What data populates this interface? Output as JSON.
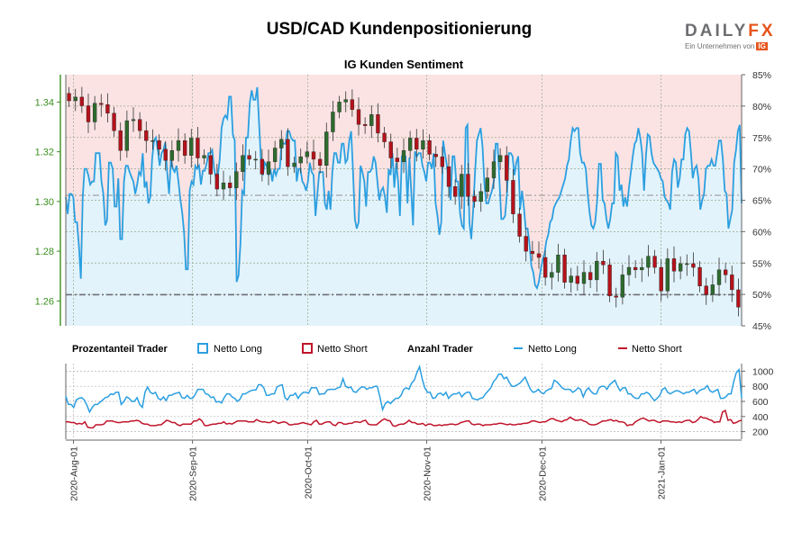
{
  "title": "USD/CAD Kundenpositionierung",
  "brand": {
    "name_a": "DAILY",
    "name_b": "FX",
    "tagline": "Ein Unternehmen von",
    "tag_mark": "IG"
  },
  "colors": {
    "long": "#2b9fe0",
    "short": "#c0142a",
    "candle_up": "#2e6b2e",
    "candle_down": "#b5121b",
    "long_fill": "#e3f3fb",
    "short_fill": "#fbe3e3",
    "left_axis": "#3b8f1f"
  },
  "legend": {
    "group1": "Prozentanteil Trader",
    "long1": "Netto Long",
    "short1": "Netto Short",
    "group2": "Anzahl Trader",
    "long2": "Netto Long",
    "short2": "Netto Short"
  },
  "chart_data": [
    {
      "type": "candlestick",
      "title": "IG Kunden Sentiment",
      "x_ticks": [
        "2020-Aug-01",
        "2020-Sep-01",
        "2020-Oct-01",
        "2020-Nov-01",
        "2020-Dec-01",
        "2021-Jan-01"
      ],
      "x_range": [
        "2020-07-30",
        "2021-01-22"
      ],
      "y_left_ticks": [
        "1.26",
        "1.28",
        "1.30",
        "1.32",
        "1.34"
      ],
      "ylim_left": [
        1.25,
        1.351
      ],
      "y_right_ticks": [
        "45%",
        "50%",
        "55%",
        "60%",
        "65%",
        "70%",
        "75%",
        "80%",
        "85%"
      ],
      "ylim_right": [
        45,
        85
      ],
      "reference_lines": [
        {
          "value": 1.3025,
          "axis": "left"
        },
        {
          "value": 1.2625,
          "axis": "left"
        }
      ],
      "series": [
        {
          "name": "Netto Long",
          "axis": "right",
          "values": [
            65.5,
            62.8,
            66,
            66,
            65.5,
            61.5,
            61.5,
            57.7,
            52.5,
            65.5,
            70,
            70,
            69,
            67.5,
            68,
            68,
            72.5,
            72.5,
            72.5,
            68,
            66,
            61,
            61.8,
            71,
            71,
            70,
            64,
            64,
            68.5,
            58.8,
            58.8,
            68,
            70.5,
            70.5,
            69.5,
            68.7,
            68,
            66,
            67.5,
            69.5,
            69,
            72.5,
            67,
            68,
            64.5,
            65.5,
            71.5,
            74.5,
            75,
            73,
            70.5,
            72.5,
            73,
            74.2,
            69.5,
            66,
            71.5,
            70,
            69.5,
            70.5,
            68,
            65.2,
            63,
            59.8,
            54,
            54,
            66.5,
            68,
            67.5,
            70.5,
            70,
            70.5,
            67.5,
            69.7,
            69.7,
            70.8,
            72.5,
            72.5,
            73,
            70,
            68.5,
            69,
            71.5,
            76.5,
            78,
            78.5,
            78,
            81.5,
            81.5,
            75.5,
            74.5,
            52,
            53,
            58,
            66.5,
            66,
            75,
            75,
            80.5,
            82.5,
            81,
            81,
            83,
            77,
            71,
            69,
            71,
            70.5,
            69,
            70,
            68,
            70,
            69,
            70,
            70,
            74.5,
            74,
            74,
            76,
            76,
            75,
            74.5,
            74.5,
            68,
            70,
            70,
            68,
            67.5,
            66.5,
            68,
            71,
            69.5,
            69,
            62.5,
            66,
            69.5,
            69.5,
            69.5,
            64.5,
            63.5,
            66.5,
            63.5,
            69.5,
            72.5,
            72.5,
            71,
            71,
            74,
            74,
            71,
            71.5,
            74.5,
            76,
            69.5,
            62,
            60.5,
            61.5,
            70.5,
            69.5,
            68,
            64,
            69.5,
            69.5,
            70,
            72,
            71,
            68,
            65,
            66.5,
            67,
            65.5,
            63,
            70,
            69,
            72.5,
            67,
            71,
            68,
            62.5,
            72,
            72,
            72,
            64.5,
            71.8,
            66.5,
            61,
            72.8,
            72,
            72.5,
            72.5,
            70.5,
            69.5,
            68,
            71,
            71,
            70,
            72.5,
            64.5,
            62.5,
            59.5,
            61.5,
            74.5,
            72.5,
            70.5,
            68,
            65,
            72,
            72,
            68,
            68,
            63,
            61,
            60.5,
            76.5,
            77,
            61.5,
            58.8,
            63.5,
            69.5,
            74.5,
            75.5,
            76.5,
            73.5,
            67.5,
            64.5,
            64.5,
            65.5,
            66.5,
            68,
            74,
            74,
            68,
            62,
            62,
            62.5,
            66,
            72.5,
            72.5,
            72,
            69,
            71,
            72,
            63.5,
            66.5,
            64,
            60.5,
            60.5,
            58,
            54.5,
            53.5,
            51.5,
            51,
            52,
            54,
            55.5,
            56.5,
            58.5,
            59.5,
            61.5,
            62,
            63.8,
            64.5,
            65,
            65.5,
            66.5,
            67.5,
            68.5,
            70.5,
            71.5,
            74.5,
            76.5,
            76,
            76.5,
            76.5,
            72.5,
            71,
            71,
            70,
            66,
            63,
            61,
            60.5,
            61.5,
            64.8,
            70.8,
            70.8,
            65,
            64.5,
            62,
            60.5,
            62,
            64.5,
            64.5,
            72.5,
            72,
            66.5,
            67.5,
            64,
            65.5,
            64,
            67,
            69.5,
            72,
            74,
            74.5,
            76.5,
            75,
            72.5,
            66.5,
            72,
            75.5,
            75.2,
            72.5,
            71,
            70.5,
            70,
            69.5,
            68.5,
            68,
            65.5,
            65,
            64.5,
            63.5,
            69.5,
            71.5,
            71,
            67,
            68.5,
            71.5,
            71.5,
            75.5,
            76.5,
            76,
            72.5,
            68.5,
            70,
            70.5,
            68.5,
            63.5,
            65,
            66,
            70,
            70.5,
            70.5,
            71.5,
            70.5,
            70.5,
            72.5,
            74.5,
            74.5,
            71.5,
            66.5,
            66,
            60.5,
            62,
            63.5,
            71,
            73,
            76,
            77,
            64.5
          ]
        },
        {
          "name": "USD/CAD",
          "axis": "left",
          "candles": [
            1.3405,
            1.342,
            1.3385,
            1.332,
            1.3395,
            1.339,
            1.3355,
            1.3285,
            1.3205,
            1.3325,
            1.333,
            1.3285,
            1.3245,
            1.3245,
            1.321,
            1.3165,
            1.3205,
            1.3245,
            1.3185,
            1.3255,
            1.3175,
            1.3185,
            1.311,
            1.305,
            1.3075,
            1.3055,
            1.312,
            1.3185,
            1.317,
            1.317,
            1.311,
            1.316,
            1.3215,
            1.325,
            1.314,
            1.3155,
            1.318,
            1.32,
            1.317,
            1.3145,
            1.328,
            1.336,
            1.34,
            1.341,
            1.337,
            1.331,
            1.3305,
            1.335,
            1.3275,
            1.324,
            1.3175,
            1.316,
            1.3205,
            1.3255,
            1.321,
            1.3245,
            1.319,
            1.318,
            1.314,
            1.306,
            1.302,
            1.311,
            1.302,
            1.3,
            1.304,
            1.3095,
            1.316,
            1.3185,
            1.3085,
            1.295,
            1.286,
            1.28,
            1.279,
            1.2775,
            1.2695,
            1.2715,
            1.2785,
            1.2675,
            1.27,
            1.267,
            1.2715,
            1.2685,
            1.276,
            1.2745,
            1.262,
            1.2615,
            1.2705,
            1.2735,
            1.2725,
            1.2735,
            1.278,
            1.2735,
            1.264,
            1.277,
            1.272,
            1.275,
            1.275,
            1.2735,
            1.266,
            1.2625,
            1.2665,
            1.2725,
            1.2705,
            1.2645,
            1.2575
          ]
        }
      ]
    },
    {
      "type": "line",
      "y_ticks": [
        "200",
        "400",
        "600",
        "800",
        "1000"
      ],
      "ylim": [
        100,
        1100
      ],
      "series": [
        {
          "name": "Netto Long",
          "values": [
            670,
            560,
            560,
            520,
            620,
            640,
            650,
            620,
            550,
            460,
            520,
            560,
            560,
            590,
            620,
            650,
            660,
            700,
            690,
            720,
            720,
            560,
            600,
            660,
            640,
            600,
            600,
            650,
            560,
            520,
            720,
            790,
            720,
            700,
            720,
            640,
            620,
            660,
            610,
            680,
            680,
            700,
            710,
            720,
            650,
            640,
            680,
            640,
            640,
            690,
            760,
            760,
            760,
            700,
            690,
            650,
            660,
            590,
            600,
            580,
            650,
            700,
            700,
            660,
            640,
            600,
            630,
            700,
            700,
            720,
            740,
            750,
            750,
            820,
            820,
            780,
            680,
            680,
            700,
            700,
            790,
            810,
            820,
            650,
            620,
            680,
            680,
            710,
            640,
            690,
            720,
            720,
            710,
            780,
            780,
            780,
            690,
            700,
            700,
            750,
            760,
            760,
            760,
            780,
            790,
            900,
            800,
            780,
            790,
            730,
            720,
            760,
            790,
            790,
            760,
            780,
            780,
            800,
            800,
            660,
            490,
            570,
            600,
            570,
            610,
            640,
            640,
            680,
            760,
            780,
            760,
            840,
            880,
            980,
            1060,
            900,
            780,
            720,
            720,
            640,
            650,
            700,
            710,
            680,
            720,
            640,
            680,
            700,
            700,
            720,
            660,
            700,
            720,
            720,
            640,
            630,
            620,
            640,
            650,
            700,
            740,
            780,
            860,
            900,
            960,
            960,
            900,
            920,
            850,
            800,
            800,
            820,
            840,
            880,
            920,
            840,
            760,
            720,
            730,
            760,
            720,
            700,
            740,
            760,
            770,
            880,
            860,
            820,
            780,
            760,
            760,
            760,
            720,
            740,
            780,
            760,
            660,
            740,
            780,
            730,
            700,
            700,
            780,
            800,
            800,
            760,
            820,
            850,
            880,
            800,
            740,
            780,
            780,
            700,
            700,
            660,
            640,
            640,
            700,
            700,
            720,
            700,
            650,
            610,
            640,
            680,
            760,
            780,
            720,
            700,
            720,
            740,
            740,
            720,
            700,
            720,
            720,
            740,
            760,
            700,
            740,
            760,
            770,
            810,
            740,
            720,
            740,
            760,
            640,
            640,
            660,
            700,
            700,
            860,
            980,
            1020,
            640
          ]
        },
        {
          "name": "Netto Short",
          "values": [
            330,
            330,
            320,
            320,
            300,
            310,
            300,
            330,
            260,
            250,
            250,
            290,
            290,
            290,
            300,
            340,
            340,
            340,
            330,
            320,
            320,
            330,
            330,
            330,
            340,
            340,
            350,
            340,
            310,
            300,
            300,
            280,
            280,
            280,
            290,
            290,
            320,
            350,
            340,
            320,
            320,
            290,
            280,
            300,
            300,
            300,
            300,
            340,
            340,
            370,
            340,
            280,
            280,
            290,
            300,
            300,
            310,
            310,
            330,
            300,
            310,
            300,
            320,
            340,
            340,
            340,
            340,
            330,
            330,
            330,
            360,
            340,
            330,
            330,
            320,
            320,
            340,
            330,
            310,
            320,
            330,
            320,
            290,
            290,
            300,
            300,
            310,
            320,
            310,
            300,
            290,
            330,
            350,
            300,
            300,
            320,
            330,
            330,
            290,
            280,
            320,
            320,
            300,
            300,
            310,
            310,
            330,
            330,
            320,
            340,
            350,
            300,
            290,
            290,
            290,
            320,
            350,
            370,
            350,
            340,
            280,
            270,
            290,
            300,
            300,
            320,
            350,
            320,
            320,
            300,
            300,
            310,
            280,
            300,
            300,
            280,
            280,
            290,
            280,
            290,
            290,
            300,
            300,
            290,
            300,
            320,
            330,
            340,
            340,
            300,
            290,
            300,
            300,
            280,
            290,
            290,
            290,
            300,
            300,
            310,
            310,
            300,
            290,
            300,
            290,
            290,
            300,
            300,
            310,
            310,
            320,
            340,
            340,
            330,
            320,
            330,
            330,
            350,
            370,
            370,
            350,
            340,
            330,
            350,
            360,
            390,
            370,
            350,
            350,
            360,
            340,
            330,
            300,
            290,
            290,
            300,
            320,
            340,
            340,
            350,
            360,
            340,
            350,
            330,
            330,
            320,
            280,
            290,
            290,
            330,
            350,
            370,
            380,
            360,
            340,
            350,
            350,
            330,
            320,
            340,
            340,
            340,
            330,
            330,
            320,
            330,
            320,
            340,
            350,
            350,
            320,
            330,
            360,
            400,
            380,
            380,
            360,
            350,
            320,
            330,
            330,
            460,
            480,
            350,
            360,
            310,
            320,
            340,
            350
          ]
        }
      ]
    }
  ]
}
